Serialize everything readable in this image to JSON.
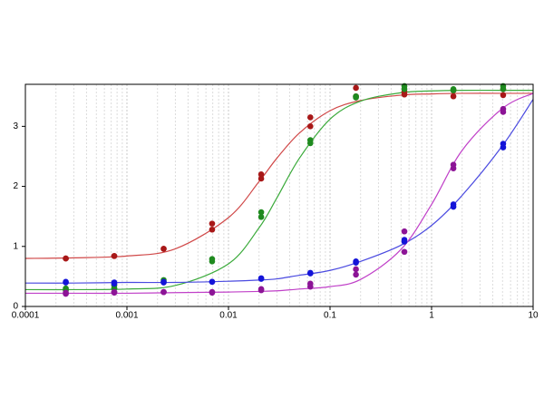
{
  "chart_data": {
    "type": "scatter",
    "log_x": true,
    "grid": "x",
    "minor_grid": true,
    "xlim": [
      0.0001,
      10
    ],
    "ylim": [
      0,
      3.7
    ],
    "xticks": [
      0.0001,
      0.001,
      0.01,
      0.1,
      1,
      10
    ],
    "yticks": [
      0,
      1,
      2,
      3
    ],
    "x": [
      0.00025,
      0.00025,
      0.00075,
      0.00075,
      0.0023,
      0.0023,
      0.0069,
      0.0069,
      0.021,
      0.021,
      0.064,
      0.064,
      0.18,
      0.18,
      0.54,
      0.54,
      1.64,
      1.64,
      5.07,
      5.07
    ],
    "series": [
      {
        "color": "#a81818",
        "values": [
          0.8,
          0.8,
          0.84,
          0.84,
          0.96,
          0.96,
          1.38,
          1.28,
          2.2,
          2.13,
          3.15,
          3.0,
          3.64,
          3.5,
          3.58,
          3.53,
          3.6,
          3.5,
          3.62,
          3.52
        ]
      },
      {
        "color": "#1f8a1f",
        "values": [
          0.3,
          0.27,
          0.3,
          0.35,
          0.44,
          0.41,
          0.79,
          0.75,
          1.57,
          1.49,
          2.77,
          2.72,
          3.5,
          3.48,
          3.67,
          3.62,
          3.62,
          3.6,
          3.67,
          3.62
        ]
      },
      {
        "color": "#1414d8",
        "values": [
          0.41,
          0.4,
          0.4,
          0.38,
          0.41,
          0.4,
          0.41,
          0.41,
          0.47,
          0.46,
          0.56,
          0.55,
          0.75,
          0.73,
          1.11,
          1.08,
          1.7,
          1.66,
          2.71,
          2.65
        ]
      },
      {
        "color": "#8c1496",
        "values": [
          0.23,
          0.21,
          0.24,
          0.23,
          0.24,
          0.24,
          0.24,
          0.23,
          0.29,
          0.27,
          0.38,
          0.33,
          0.62,
          0.53,
          1.25,
          0.91,
          2.36,
          2.3,
          3.29,
          3.24
        ]
      }
    ],
    "curves": {
      "x": [
        0.0001,
        0.0003,
        0.001,
        0.003,
        0.01,
        0.02,
        0.03,
        0.05,
        0.1,
        0.2,
        0.5,
        1,
        2,
        5,
        10
      ],
      "series": [
        {
          "color": "#d04848",
          "values": [
            0.8,
            0.81,
            0.84,
            0.96,
            1.48,
            2.08,
            2.47,
            2.89,
            3.26,
            3.43,
            3.52,
            3.54,
            3.55,
            3.55,
            3.55
          ]
        },
        {
          "color": "#3aaa3a",
          "values": [
            0.28,
            0.28,
            0.29,
            0.35,
            0.71,
            1.31,
            1.81,
            2.47,
            3.12,
            3.42,
            3.56,
            3.59,
            3.6,
            3.6,
            3.6
          ]
        },
        {
          "color": "#4a4ae0",
          "values": [
            0.39,
            0.39,
            0.4,
            0.4,
            0.42,
            0.44,
            0.46,
            0.52,
            0.6,
            0.75,
            1.02,
            1.35,
            1.85,
            2.68,
            3.45
          ]
        },
        {
          "color": "#c040c8",
          "values": [
            0.22,
            0.22,
            0.22,
            0.23,
            0.24,
            0.25,
            0.26,
            0.29,
            0.33,
            0.45,
            0.95,
            1.7,
            2.6,
            3.3,
            3.55
          ]
        }
      ]
    }
  }
}
